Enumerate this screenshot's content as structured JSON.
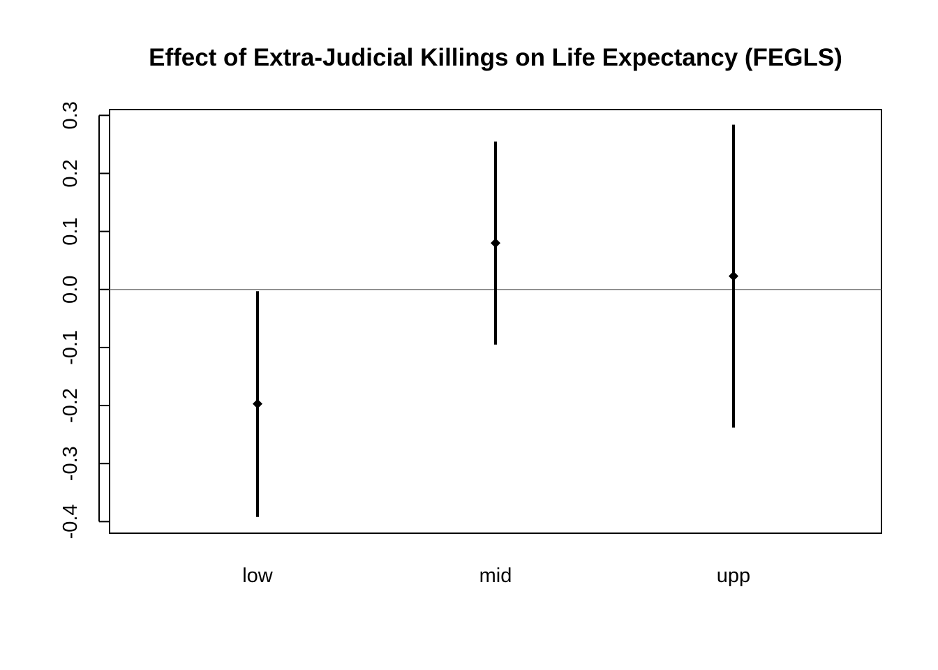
{
  "chart_data": {
    "type": "errorbar",
    "title": "Effect of Extra-Judicial Killings on Life Expectancy (FEGLS)",
    "xlabel": "",
    "ylabel": "",
    "categories": [
      "low",
      "mid",
      "upp"
    ],
    "estimates": [
      -0.197,
      0.08,
      0.023
    ],
    "lower": [
      -0.392,
      -0.095,
      -0.238
    ],
    "upper": [
      -0.003,
      0.255,
      0.284
    ],
    "ylim": [
      -0.42,
      0.31
    ],
    "yticks": [
      -0.4,
      -0.3,
      -0.2,
      -0.1,
      0.0,
      0.1,
      0.2,
      0.3
    ],
    "ytick_labels": [
      "-0.4",
      "-0.3",
      "-0.2",
      "-0.1",
      "0.0",
      "0.1",
      "0.2",
      "0.3"
    ],
    "reference_line": 0.0,
    "grid": false,
    "legend": "none",
    "colors": {
      "marks": "#000000",
      "reference_line": "#7f7f7f"
    }
  }
}
